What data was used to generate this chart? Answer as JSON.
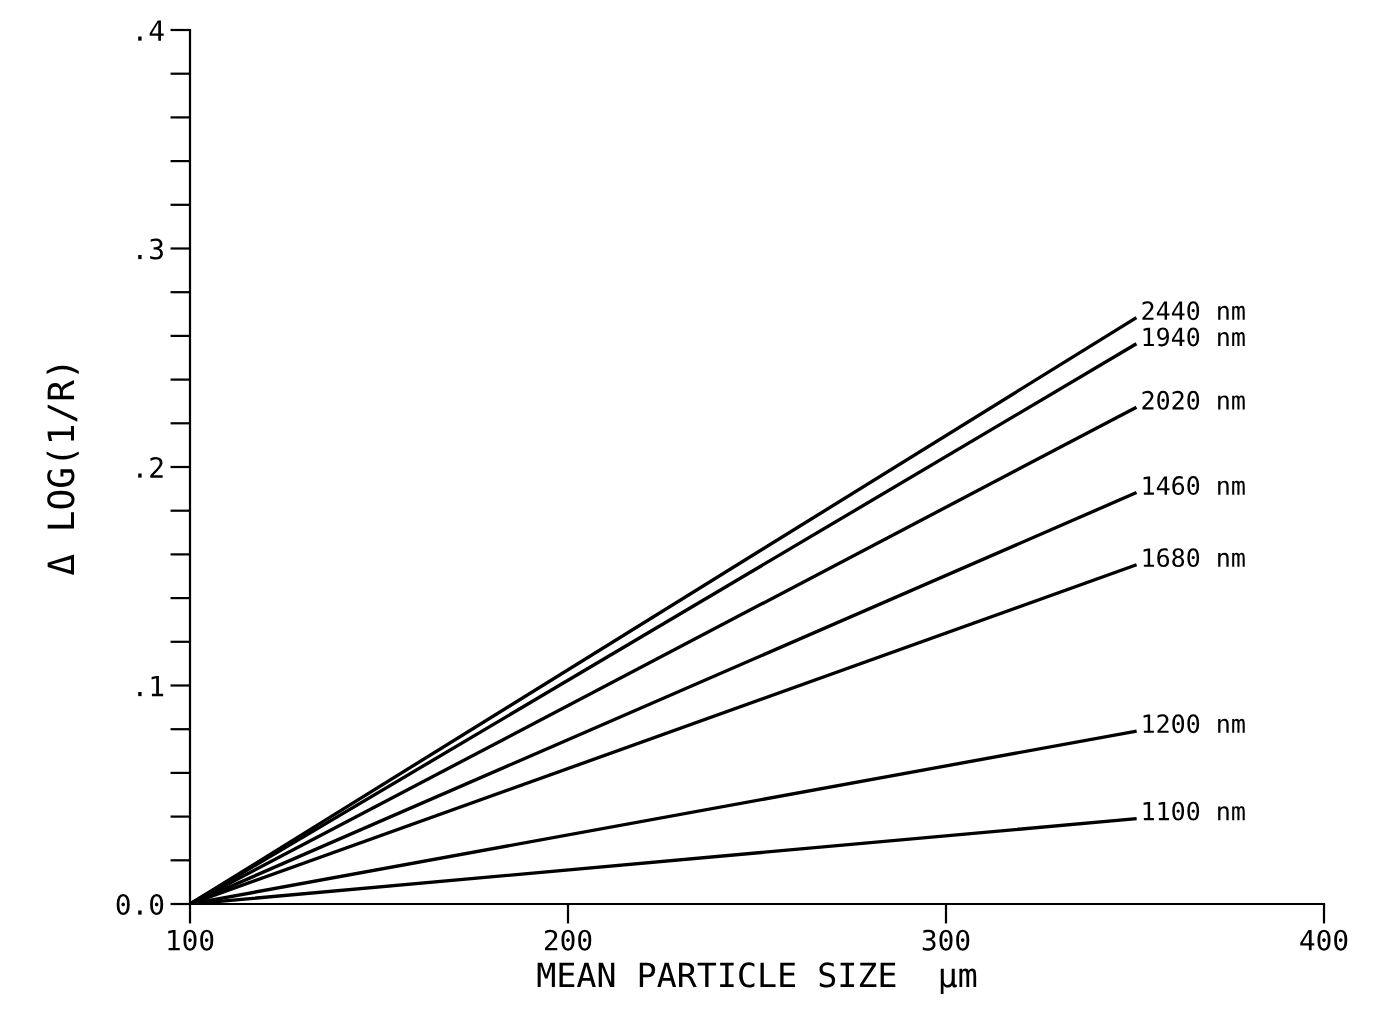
{
  "chart_data": {
    "type": "line",
    "xlabel": "MEAN PARTICLE SIZE  μm",
    "ylabel": "Δ LOG(1/R)",
    "x": [
      100,
      350
    ],
    "series": [
      {
        "name": "2440 nm",
        "color": "#000000",
        "values": [
          0,
          0.268
        ]
      },
      {
        "name": "1940 nm",
        "color": "#000000",
        "values": [
          0,
          0.256
        ]
      },
      {
        "name": "2020 nm",
        "color": "#000000",
        "values": [
          0,
          0.227
        ]
      },
      {
        "name": "1460 nm",
        "color": "#000000",
        "values": [
          0,
          0.188
        ]
      },
      {
        "name": "1680 nm",
        "color": "#000000",
        "values": [
          0,
          0.155
        ]
      },
      {
        "name": "1200 nm",
        "color": "#000000",
        "values": [
          0,
          0.079
        ]
      },
      {
        "name": "1100 nm",
        "color": "#000000",
        "values": [
          0,
          0.039
        ]
      }
    ],
    "xlim": [
      100,
      400
    ],
    "xticks": [
      100,
      200,
      300,
      400
    ],
    "ylim": [
      0,
      0.4
    ],
    "yticks": [
      {
        "value": 0,
        "label": "0.0"
      },
      {
        "value": 0.02,
        "label": null
      },
      {
        "value": 0.04,
        "label": null
      },
      {
        "value": 0.06,
        "label": null
      },
      {
        "value": 0.08,
        "label": null
      },
      {
        "value": 0.1,
        "label": ".1"
      },
      {
        "value": 0.12,
        "label": null
      },
      {
        "value": 0.14,
        "label": null
      },
      {
        "value": 0.16,
        "label": null
      },
      {
        "value": 0.18,
        "label": null
      },
      {
        "value": 0.2,
        "label": ".2"
      },
      {
        "value": 0.22,
        "label": null
      },
      {
        "value": 0.24,
        "label": null
      },
      {
        "value": 0.26,
        "label": null
      },
      {
        "value": 0.28,
        "label": null
      },
      {
        "value": 0.3,
        "label": ".3"
      },
      {
        "value": 0.32,
        "label": null
      },
      {
        "value": 0.34,
        "label": null
      },
      {
        "value": 0.36,
        "label": null
      },
      {
        "value": 0.38,
        "label": null
      },
      {
        "value": 0.4,
        "label": ".4"
      }
    ],
    "grid": false,
    "legend": false,
    "marker": "none",
    "line_style": "solid"
  }
}
